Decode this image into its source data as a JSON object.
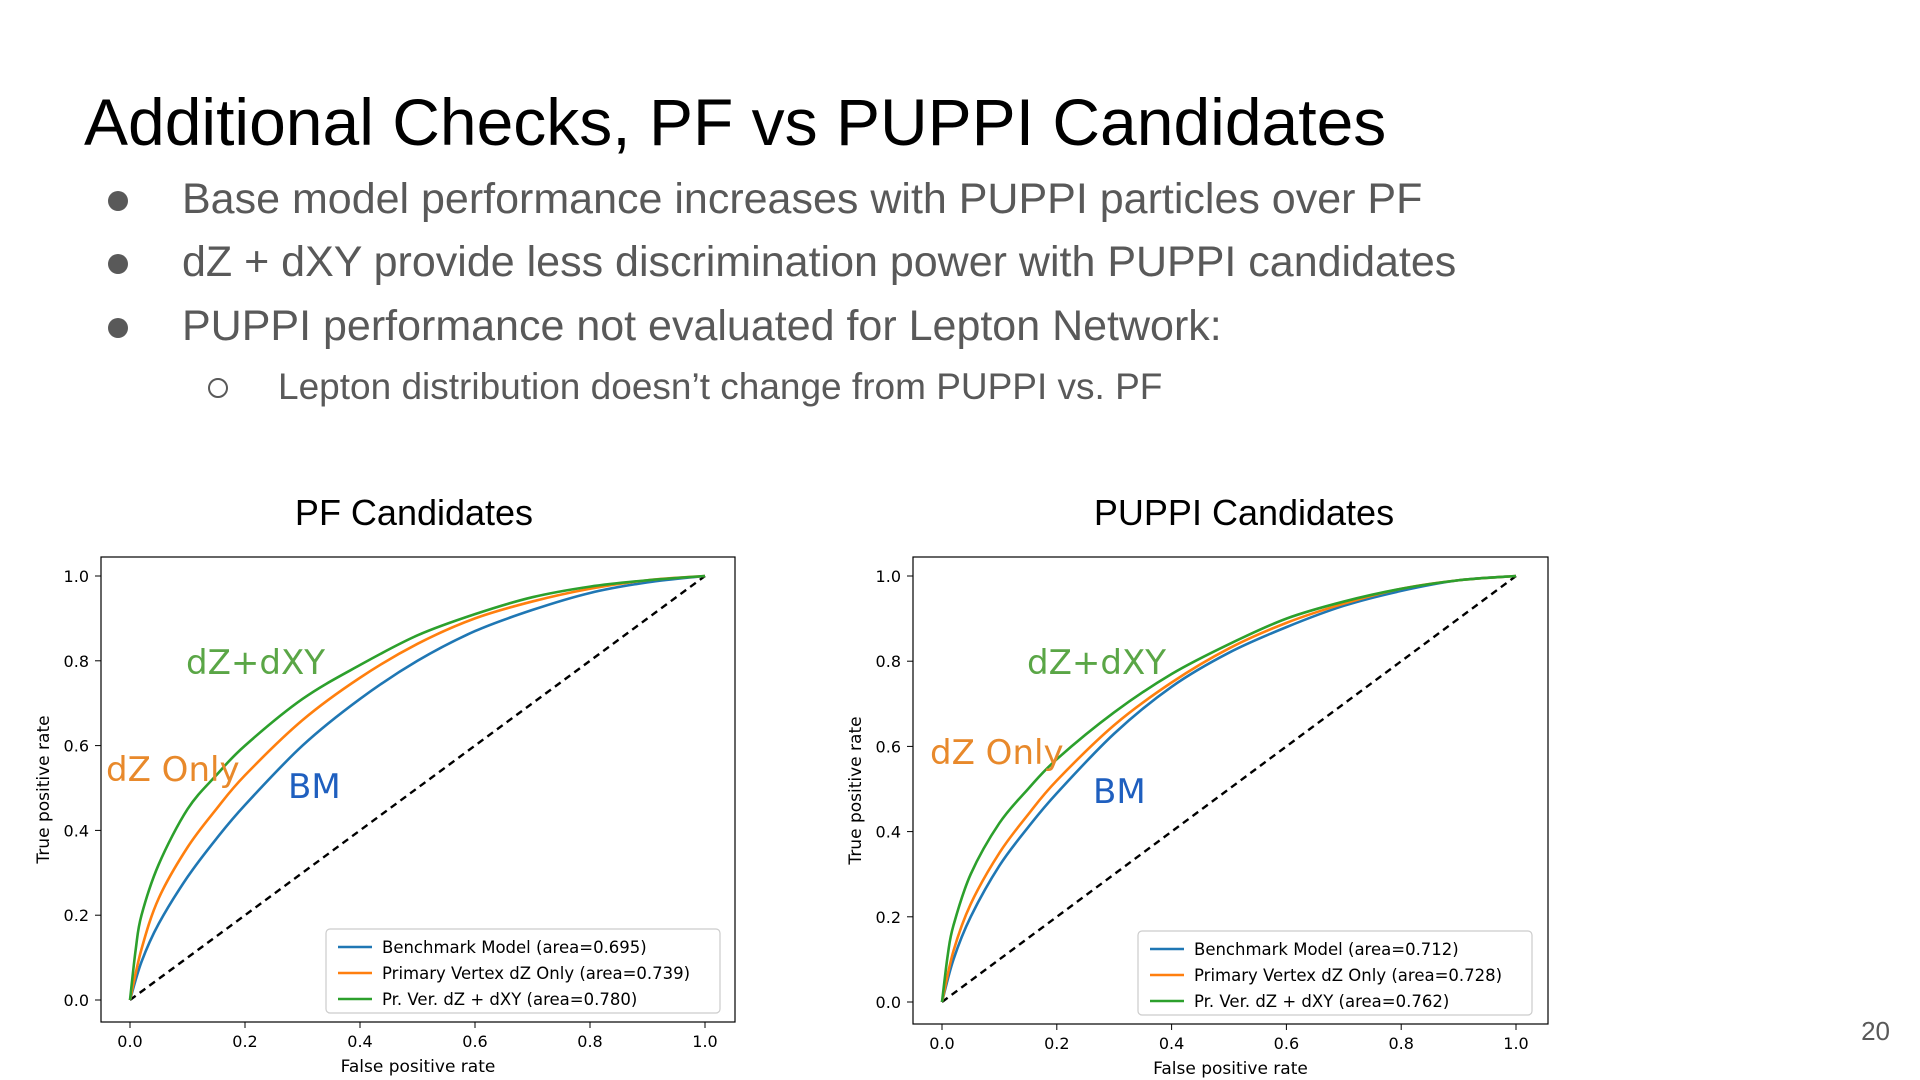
{
  "slide": {
    "title": "Additional Checks, PF vs PUPPI Candidates",
    "bullets": [
      "Base model performance increases with PUPPI particles over PF",
      "dZ + dXY provide less discrimination power with PUPPI candidates",
      "PUPPI performance not evaluated for Lepton Network:"
    ],
    "sub_bullets": [
      "Lepton distribution doesn’t change from PUPPI vs. PF"
    ],
    "page_number": "20"
  },
  "colors": {
    "blue": "#1f77b4",
    "orange": "#ff7f0e",
    "green": "#2ca02c",
    "bm_label": "#1f5fbf",
    "dz_label": "#e8892b",
    "dzdxy_label": "#5aa646"
  },
  "chart_data": [
    {
      "type": "line",
      "title": "PF Candidates",
      "xlabel": "False positive rate",
      "ylabel": "True positive rate",
      "xlim": [
        0.0,
        1.0
      ],
      "ylim": [
        0.0,
        1.0
      ],
      "xticks": [
        "0.0",
        "0.2",
        "0.4",
        "0.6",
        "0.8",
        "1.0"
      ],
      "yticks": [
        "0.0",
        "0.2",
        "0.4",
        "0.6",
        "0.8",
        "1.0"
      ],
      "legend_position": "lower-right",
      "grid": false,
      "annotations": [
        "dZ+dXY",
        "dZ Only",
        "BM"
      ],
      "diagonal": {
        "x": [
          0,
          1
        ],
        "y": [
          0,
          1
        ],
        "style": "dashed",
        "color": "#000000"
      },
      "series": [
        {
          "name": "Benchmark Model (area=0.695)",
          "color": "#1f77b4",
          "x": [
            0,
            0.02,
            0.05,
            0.1,
            0.15,
            0.2,
            0.3,
            0.4,
            0.5,
            0.6,
            0.7,
            0.8,
            0.9,
            1.0
          ],
          "y": [
            0,
            0.09,
            0.18,
            0.29,
            0.38,
            0.46,
            0.6,
            0.71,
            0.8,
            0.87,
            0.92,
            0.96,
            0.985,
            1.0
          ]
        },
        {
          "name": "Primary Vertex dZ Only (area=0.739)",
          "color": "#ff7f0e",
          "x": [
            0,
            0.02,
            0.05,
            0.1,
            0.15,
            0.2,
            0.3,
            0.4,
            0.5,
            0.6,
            0.7,
            0.8,
            0.9,
            1.0
          ],
          "y": [
            0,
            0.12,
            0.24,
            0.36,
            0.45,
            0.53,
            0.66,
            0.76,
            0.84,
            0.9,
            0.94,
            0.97,
            0.99,
            1.0
          ]
        },
        {
          "name": "Pr. Ver. dZ + dXY (area=0.780)",
          "color": "#2ca02c",
          "x": [
            0,
            0.01,
            0.02,
            0.05,
            0.1,
            0.15,
            0.2,
            0.3,
            0.4,
            0.5,
            0.6,
            0.7,
            0.8,
            0.9,
            1.0
          ],
          "y": [
            0,
            0.12,
            0.2,
            0.32,
            0.45,
            0.53,
            0.6,
            0.71,
            0.79,
            0.86,
            0.91,
            0.95,
            0.975,
            0.99,
            1.0
          ]
        }
      ]
    },
    {
      "type": "line",
      "title": "PUPPI Candidates",
      "xlabel": "False positive rate",
      "ylabel": "True positive rate",
      "xlim": [
        0.0,
        1.0
      ],
      "ylim": [
        0.0,
        1.0
      ],
      "xticks": [
        "0.0",
        "0.2",
        "0.4",
        "0.6",
        "0.8",
        "1.0"
      ],
      "yticks": [
        "0.0",
        "0.2",
        "0.4",
        "0.6",
        "0.8",
        "1.0"
      ],
      "legend_position": "lower-right",
      "grid": false,
      "annotations": [
        "dZ+dXY",
        "dZ Only",
        "BM"
      ],
      "diagonal": {
        "x": [
          0,
          1
        ],
        "y": [
          0,
          1
        ],
        "style": "dashed",
        "color": "#000000"
      },
      "series": [
        {
          "name": "Benchmark Model (area=0.712)",
          "color": "#1f77b4",
          "x": [
            0,
            0.02,
            0.05,
            0.1,
            0.15,
            0.2,
            0.3,
            0.4,
            0.5,
            0.6,
            0.7,
            0.8,
            0.9,
            1.0
          ],
          "y": [
            0,
            0.1,
            0.2,
            0.32,
            0.41,
            0.49,
            0.63,
            0.74,
            0.82,
            0.88,
            0.93,
            0.965,
            0.99,
            1.0
          ]
        },
        {
          "name": "Primary Vertex dZ Only (area=0.728)",
          "color": "#ff7f0e",
          "x": [
            0,
            0.02,
            0.05,
            0.1,
            0.15,
            0.2,
            0.3,
            0.4,
            0.5,
            0.6,
            0.7,
            0.8,
            0.9,
            1.0
          ],
          "y": [
            0,
            0.12,
            0.23,
            0.35,
            0.44,
            0.52,
            0.65,
            0.75,
            0.83,
            0.89,
            0.935,
            0.97,
            0.99,
            1.0
          ]
        },
        {
          "name": "Pr. Ver. dZ + dXY (area=0.762)",
          "color": "#2ca02c",
          "x": [
            0,
            0.01,
            0.02,
            0.05,
            0.1,
            0.15,
            0.2,
            0.3,
            0.4,
            0.5,
            0.6,
            0.7,
            0.8,
            0.9,
            1.0
          ],
          "y": [
            0,
            0.11,
            0.18,
            0.3,
            0.42,
            0.5,
            0.57,
            0.68,
            0.77,
            0.84,
            0.9,
            0.94,
            0.97,
            0.99,
            1.0
          ]
        }
      ]
    }
  ]
}
